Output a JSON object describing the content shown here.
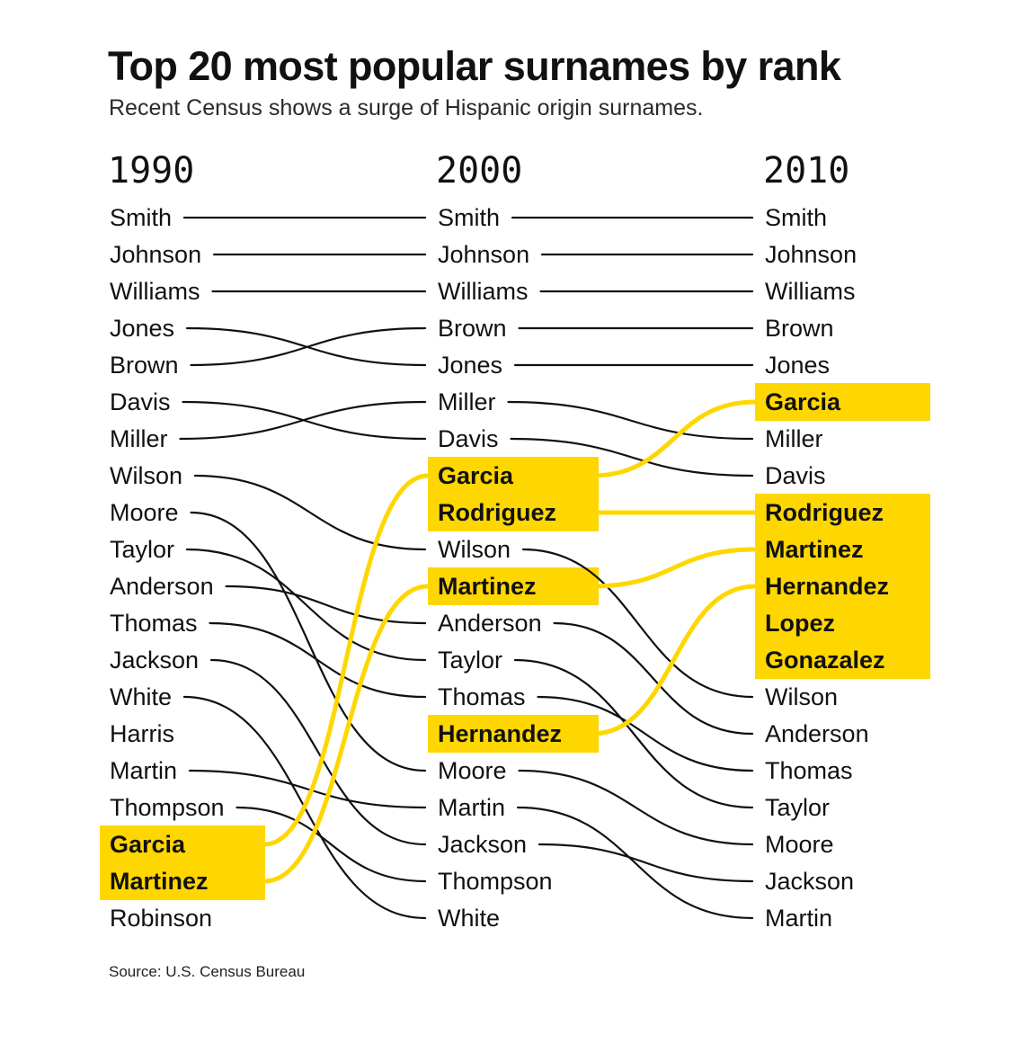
{
  "title": "Top 20 most popular surnames by rank",
  "subtitle": "Recent Census shows a surge of Hispanic origin surnames.",
  "source": "Source: U.S. Census Bureau",
  "colors": {
    "highlight": "#ffd700",
    "line": "#111111",
    "text": "#111111"
  },
  "chart_data": {
    "type": "slopegraph",
    "title": "Top 20 most popular surnames by rank",
    "subtitle": "Recent Census shows a surge of Hispanic origin surnames.",
    "years": [
      "1990",
      "2000",
      "2010"
    ],
    "rankings": {
      "1990": [
        "Smith",
        "Johnson",
        "Williams",
        "Jones",
        "Brown",
        "Davis",
        "Miller",
        "Wilson",
        "Moore",
        "Taylor",
        "Anderson",
        "Thomas",
        "Jackson",
        "White",
        "Harris",
        "Martin",
        "Thompson",
        "Garcia",
        "Martinez",
        "Robinson"
      ],
      "2000": [
        "Smith",
        "Johnson",
        "Williams",
        "Brown",
        "Jones",
        "Miller",
        "Davis",
        "Garcia",
        "Rodriguez",
        "Wilson",
        "Martinez",
        "Anderson",
        "Taylor",
        "Thomas",
        "Hernandez",
        "Moore",
        "Martin",
        "Jackson",
        "Thompson",
        "White"
      ],
      "2010": [
        "Smith",
        "Johnson",
        "Williams",
        "Brown",
        "Jones",
        "Garcia",
        "Miller",
        "Davis",
        "Rodriguez",
        "Martinez",
        "Hernandez",
        "Lopez",
        "Gonazalez",
        "Wilson",
        "Anderson",
        "Thomas",
        "Taylor",
        "Moore",
        "Jackson",
        "Martin"
      ]
    },
    "highlighted": {
      "1990": [
        "Garcia",
        "Martinez"
      ],
      "2000": [
        "Garcia",
        "Rodriguez",
        "Martinez",
        "Hernandez"
      ],
      "2010": [
        "Garcia",
        "Rodriguez",
        "Martinez",
        "Hernandez",
        "Lopez",
        "Gonazalez"
      ]
    },
    "highlighted_links": {
      "1990-2000": [
        "Garcia",
        "Martinez"
      ],
      "2000-2010": [
        "Garcia",
        "Rodriguez",
        "Martinez",
        "Hernandez"
      ]
    },
    "plain_links": {
      "1990-2000": [
        "Smith",
        "Johnson",
        "Williams",
        "Jones",
        "Brown",
        "Davis",
        "Miller",
        "Wilson",
        "Moore",
        "Taylor",
        "Anderson",
        "Thomas",
        "Jackson",
        "White",
        "Martin",
        "Thompson"
      ],
      "2000-2010": [
        "Smith",
        "Johnson",
        "Williams",
        "Brown",
        "Jones",
        "Miller",
        "Davis",
        "Wilson",
        "Anderson",
        "Taylor",
        "Thomas",
        "Moore",
        "Martin",
        "Jackson"
      ]
    }
  }
}
